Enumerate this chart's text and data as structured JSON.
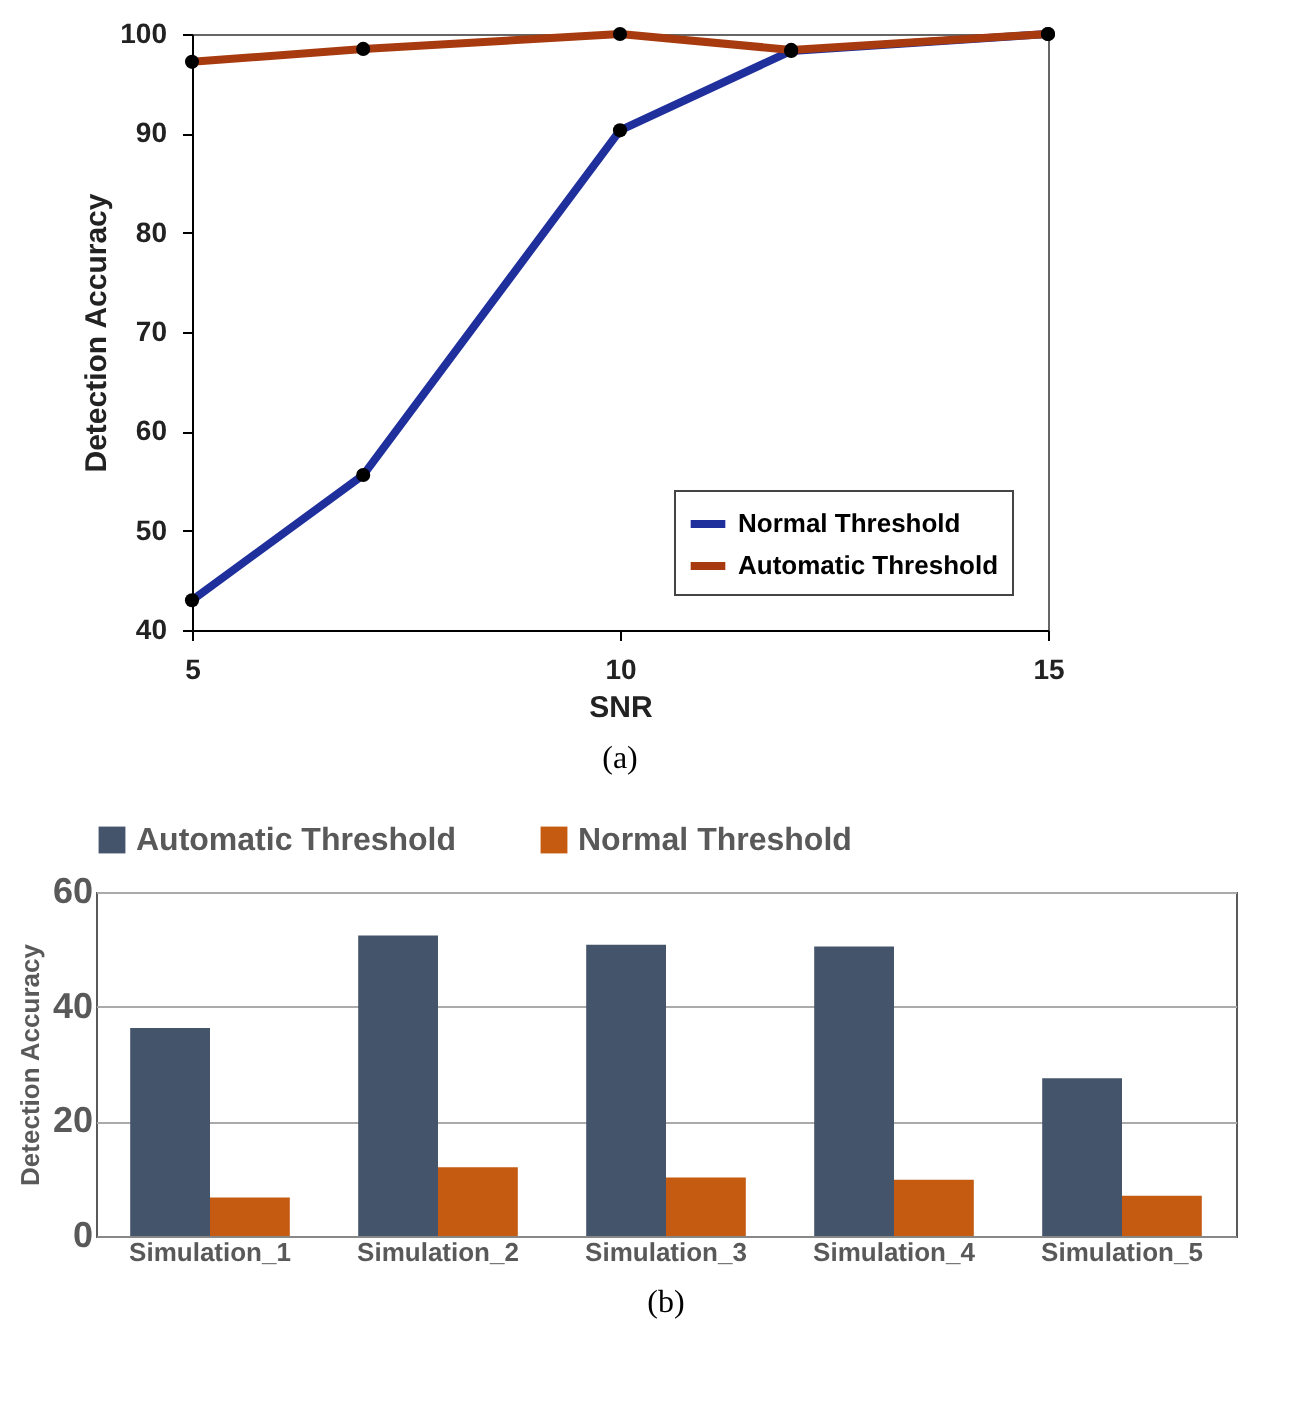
{
  "chart_data": [
    {
      "type": "line",
      "xlabel": "SNR",
      "ylabel": "Detection Accuracy",
      "x": [
        5,
        7,
        10,
        12,
        15
      ],
      "xlim": [
        5,
        15
      ],
      "xticks": [
        5,
        10,
        15
      ],
      "ylim": [
        40,
        100
      ],
      "yticks": [
        40,
        50,
        60,
        70,
        80,
        90,
        100
      ],
      "legend": "bottom right",
      "marker": "circle",
      "annotations": [
        "(a)"
      ],
      "series": [
        {
          "name": "Normal Threshold",
          "color": "#1f2f9c",
          "values": [
            43,
            55.6,
            90.3,
            98.3,
            100
          ]
        },
        {
          "name": "Automatic Threshold",
          "color": "#a83a0f",
          "values": [
            97.2,
            98.5,
            100,
            98.4,
            100
          ]
        }
      ]
    },
    {
      "type": "bar",
      "ylabel": "Detection Accuracy",
      "categories": [
        "Simulation_1",
        "Simulation_2",
        "Simulation_3",
        "Simulation_4",
        "Simulation_5"
      ],
      "ylim": [
        0,
        60
      ],
      "yticks": [
        0,
        20,
        40,
        60
      ],
      "grid": "y",
      "legend": "top",
      "annotations": [
        "(b)"
      ],
      "series": [
        {
          "name": "Automatic Threshold",
          "color": "#44546a",
          "values": [
            36.3,
            52.4,
            50.8,
            50.5,
            27.5
          ]
        },
        {
          "name": "Normal Threshold",
          "color": "#c55a11",
          "values": [
            6.7,
            12.0,
            10.2,
            9.8,
            7.0
          ]
        }
      ]
    }
  ]
}
